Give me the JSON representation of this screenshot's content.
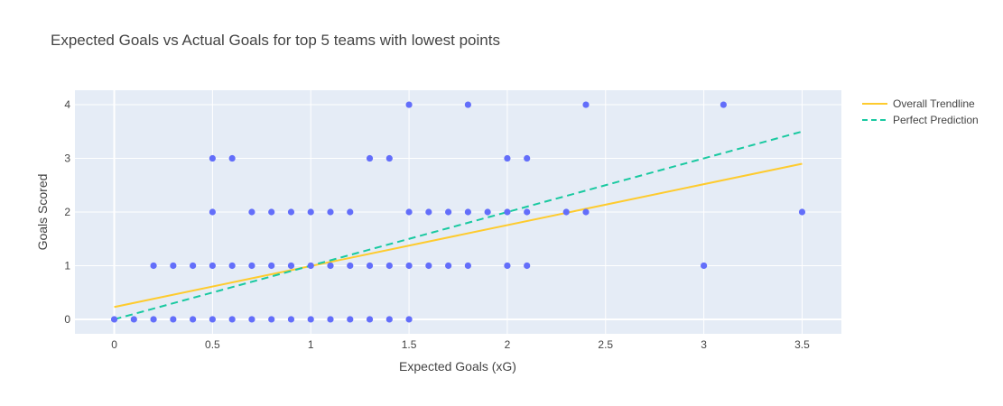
{
  "chart_data": {
    "type": "scatter",
    "title": "Expected Goals vs Actual Goals for top 5 teams with lowest points",
    "xlabel": "Expected Goals (xG)",
    "ylabel": "Goals Scored",
    "xlim": [
      -0.2,
      3.7
    ],
    "ylim": [
      -0.27,
      4.27
    ],
    "xticks": [
      0,
      0.5,
      1,
      1.5,
      2,
      2.5,
      3,
      3.5
    ],
    "xtick_labels": [
      "0",
      "0.5",
      "1",
      "1.5",
      "2",
      "2.5",
      "3",
      "3.5"
    ],
    "yticks": [
      0,
      1,
      2,
      3,
      4
    ],
    "ytick_labels": [
      "0",
      "1",
      "2",
      "3",
      "4"
    ],
    "grid": true,
    "legend_position": "top-right",
    "series": [
      {
        "kind": "markers",
        "color": "#636efa",
        "points": [
          [
            0,
            0
          ],
          [
            0.1,
            0
          ],
          [
            0.2,
            0
          ],
          [
            0.3,
            0
          ],
          [
            0.4,
            0
          ],
          [
            0.5,
            0
          ],
          [
            0.6,
            0
          ],
          [
            0.7,
            0
          ],
          [
            0.8,
            0
          ],
          [
            0.9,
            0
          ],
          [
            1.0,
            0
          ],
          [
            1.1,
            0
          ],
          [
            1.2,
            0
          ],
          [
            1.3,
            0
          ],
          [
            1.4,
            0
          ],
          [
            1.5,
            0
          ],
          [
            0.2,
            1
          ],
          [
            0.3,
            1
          ],
          [
            0.4,
            1
          ],
          [
            0.5,
            1
          ],
          [
            0.6,
            1
          ],
          [
            0.7,
            1
          ],
          [
            0.8,
            1
          ],
          [
            0.9,
            1
          ],
          [
            1.0,
            1
          ],
          [
            1.1,
            1
          ],
          [
            1.2,
            1
          ],
          [
            1.3,
            1
          ],
          [
            1.4,
            1
          ],
          [
            1.5,
            1
          ],
          [
            1.6,
            1
          ],
          [
            1.7,
            1
          ],
          [
            1.8,
            1
          ],
          [
            2.0,
            1
          ],
          [
            2.1,
            1
          ],
          [
            3.0,
            1
          ],
          [
            0.5,
            2
          ],
          [
            0.7,
            2
          ],
          [
            0.8,
            2
          ],
          [
            0.9,
            2
          ],
          [
            1.0,
            2
          ],
          [
            1.1,
            2
          ],
          [
            1.2,
            2
          ],
          [
            1.5,
            2
          ],
          [
            1.6,
            2
          ],
          [
            1.7,
            2
          ],
          [
            1.8,
            2
          ],
          [
            1.9,
            2
          ],
          [
            2.0,
            2
          ],
          [
            2.1,
            2
          ],
          [
            2.3,
            2
          ],
          [
            2.4,
            2
          ],
          [
            3.5,
            2
          ],
          [
            0.5,
            3
          ],
          [
            0.6,
            3
          ],
          [
            1.3,
            3
          ],
          [
            1.4,
            3
          ],
          [
            2.0,
            3
          ],
          [
            2.1,
            3
          ],
          [
            1.5,
            4
          ],
          [
            1.8,
            4
          ],
          [
            2.4,
            4
          ],
          [
            3.1,
            4
          ]
        ]
      },
      {
        "name": "Overall Trendline",
        "kind": "line",
        "color": "#fecb2e",
        "dash": "solid",
        "x": [
          0,
          3.5
        ],
        "y": [
          0.23,
          2.9
        ]
      },
      {
        "name": "Perfect Prediction",
        "kind": "line",
        "color": "#19c9a0",
        "dash": "dashed",
        "x": [
          0,
          3.5
        ],
        "y": [
          0,
          3.5
        ]
      }
    ]
  }
}
